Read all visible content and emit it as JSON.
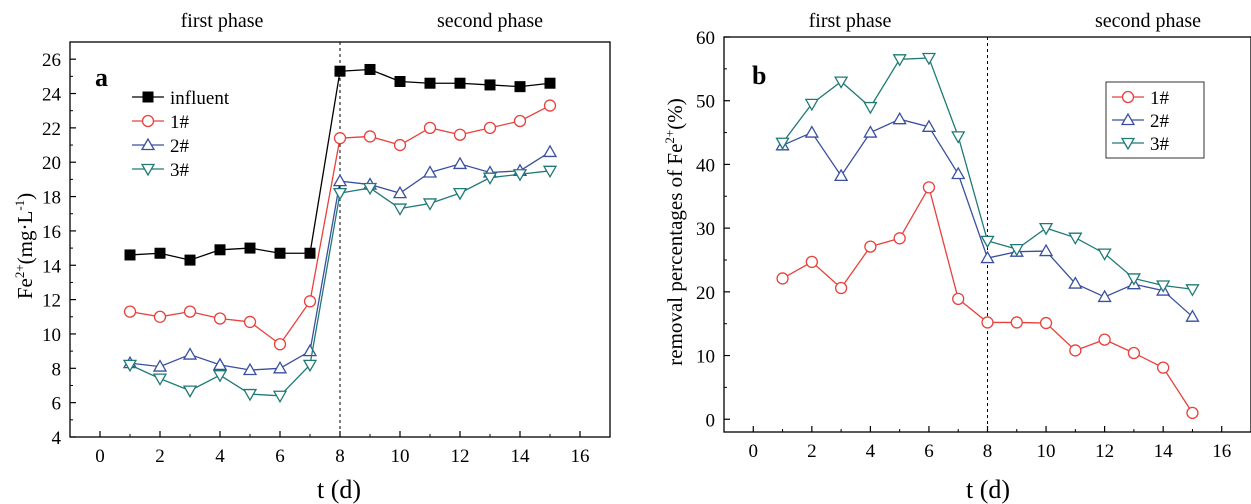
{
  "chart_data": [
    {
      "type": "line",
      "panel_label": "a",
      "title": "",
      "xlabel": "t (d)",
      "ylabel": {
        "base": "Fe",
        "sup": "2+",
        "rest": "(mg·L",
        "sup2": "-1",
        "end": ")"
      },
      "xlim": [
        -1,
        17
      ],
      "ylim": [
        4,
        27
      ],
      "xticks": [
        "0",
        "2",
        "4",
        "6",
        "8",
        "10",
        "12",
        "14",
        "16"
      ],
      "yticks": [
        "4",
        "6",
        "8",
        "10",
        "12",
        "14",
        "16",
        "18",
        "20",
        "22",
        "24",
        "26"
      ],
      "phase_labels": [
        "first phase",
        "second phase"
      ],
      "phase_divider_x": 8,
      "legend_position": "upper-left",
      "grid": false,
      "x": [
        1,
        2,
        3,
        4,
        5,
        6,
        7,
        8,
        9,
        10,
        11,
        12,
        13,
        14,
        15
      ],
      "series": [
        {
          "name": "influent",
          "marker": "square",
          "color": "#000000",
          "values": [
            14.6,
            14.7,
            14.3,
            14.9,
            15.0,
            14.7,
            14.7,
            25.3,
            25.4,
            24.7,
            24.6,
            24.6,
            24.5,
            24.4,
            24.6
          ]
        },
        {
          "name": "1#",
          "marker": "circle",
          "color": "#e8413c",
          "values": [
            11.3,
            11.0,
            11.3,
            10.9,
            10.7,
            9.4,
            11.9,
            21.4,
            21.5,
            21.0,
            22.0,
            21.6,
            22.0,
            22.4,
            23.3
          ]
        },
        {
          "name": "2#",
          "marker": "triangle-up",
          "color": "#3a4fa0",
          "values": [
            8.3,
            8.1,
            8.8,
            8.2,
            7.9,
            8.0,
            9.0,
            18.9,
            18.7,
            18.2,
            19.4,
            19.9,
            19.4,
            19.5,
            20.6
          ]
        },
        {
          "name": "3#",
          "marker": "triangle-down",
          "color": "#1f7a75",
          "values": [
            8.2,
            7.4,
            6.7,
            7.6,
            6.5,
            6.4,
            8.2,
            18.2,
            18.5,
            17.3,
            17.6,
            18.2,
            19.1,
            19.3,
            19.5
          ]
        }
      ]
    },
    {
      "type": "line",
      "panel_label": "b",
      "title": "",
      "xlabel": "t (d)",
      "ylabel": {
        "base": "removal percentages of Fe",
        "sup": "2+",
        "rest": "(%)"
      },
      "xlim": [
        -1,
        17
      ],
      "ylim": [
        -2,
        60
      ],
      "xticks": [
        "0",
        "2",
        "4",
        "6",
        "8",
        "10",
        "12",
        "14",
        "16"
      ],
      "yticks": [
        "0",
        "10",
        "20",
        "30",
        "40",
        "50",
        "60"
      ],
      "phase_labels": [
        "first phase",
        "second phase"
      ],
      "phase_divider_x": 8,
      "legend_position": "upper-right",
      "grid": false,
      "x": [
        1,
        2,
        3,
        4,
        5,
        6,
        7,
        8,
        9,
        10,
        11,
        12,
        13,
        14,
        15
      ],
      "series": [
        {
          "name": "1#",
          "marker": "circle",
          "color": "#e8413c",
          "values": [
            22.1,
            24.7,
            20.6,
            27.1,
            28.4,
            36.4,
            18.9,
            15.2,
            15.2,
            15.1,
            10.8,
            12.5,
            10.4,
            8.1,
            1.0
          ]
        },
        {
          "name": "2#",
          "marker": "triangle-up",
          "color": "#3a4fa0",
          "values": [
            43.0,
            45.0,
            38.2,
            45.0,
            47.1,
            45.9,
            38.5,
            25.3,
            26.3,
            26.4,
            21.3,
            19.2,
            21.2,
            20.2,
            16.1
          ]
        },
        {
          "name": "3#",
          "marker": "triangle-down",
          "color": "#1f7a75",
          "values": [
            43.4,
            49.5,
            53.0,
            49.0,
            56.5,
            56.7,
            44.4,
            28.0,
            26.7,
            30.0,
            28.5,
            26.0,
            22.1,
            21.0,
            20.4
          ]
        }
      ]
    }
  ]
}
